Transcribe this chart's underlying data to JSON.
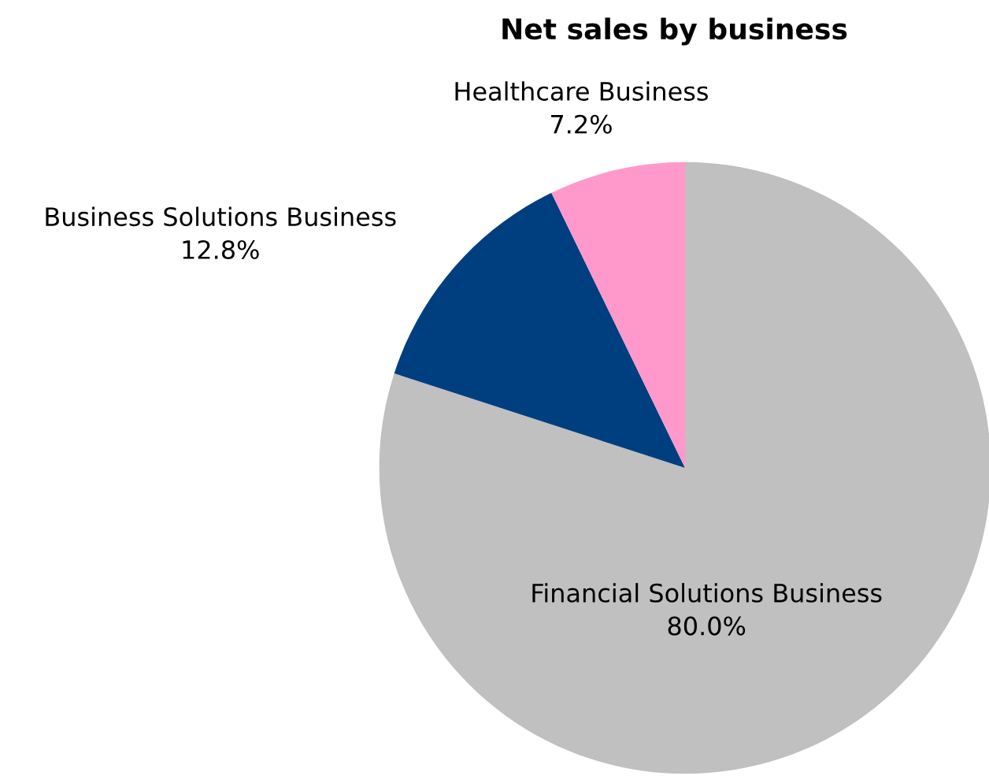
{
  "chart_data": {
    "type": "pie",
    "title": "Net sales by business",
    "categories": [
      "Financial Solutions Business",
      "Business Solutions Business",
      "Healthcare Business"
    ],
    "values": [
      80.0,
      12.8,
      7.2
    ],
    "colors": [
      "#c0c0c0",
      "#003f7f",
      "#ff99cc"
    ],
    "value_labels": [
      "80.0%",
      "12.8%",
      "7.2%"
    ],
    "legend": false
  }
}
